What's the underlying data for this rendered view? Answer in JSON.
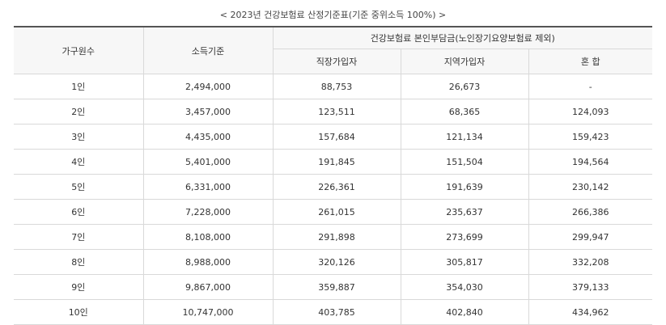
{
  "caption": "< 2023년 건강보험료 산정기준표(기준 중위소득 100%) >",
  "headers": {
    "household": "가구원수",
    "income": "소득기준",
    "premium_group": "건강보험료 본인부담금(노인장기요양보험료 제외)",
    "workplace": "직장가입자",
    "regional": "지역가입자",
    "mixed": "혼 합"
  },
  "rows": [
    {
      "household": "1인",
      "income": "2,494,000",
      "workplace": "88,753",
      "regional": "26,673",
      "mixed": "-"
    },
    {
      "household": "2인",
      "income": "3,457,000",
      "workplace": "123,511",
      "regional": "68,365",
      "mixed": "124,093"
    },
    {
      "household": "3인",
      "income": "4,435,000",
      "workplace": "157,684",
      "regional": "121,134",
      "mixed": "159,423"
    },
    {
      "household": "4인",
      "income": "5,401,000",
      "workplace": "191,845",
      "regional": "151,504",
      "mixed": "194,564"
    },
    {
      "household": "5인",
      "income": "6,331,000",
      "workplace": "226,361",
      "regional": "191,639",
      "mixed": "230,142"
    },
    {
      "household": "6인",
      "income": "7,228,000",
      "workplace": "261,015",
      "regional": "235,637",
      "mixed": "266,386"
    },
    {
      "household": "7인",
      "income": "8,108,000",
      "workplace": "291,898",
      "regional": "273,699",
      "mixed": "299,947"
    },
    {
      "household": "8인",
      "income": "8,988,000",
      "workplace": "320,126",
      "regional": "305,817",
      "mixed": "332,208"
    },
    {
      "household": "9인",
      "income": "9,867,000",
      "workplace": "359,887",
      "regional": "354,030",
      "mixed": "379,133"
    },
    {
      "household": "10인",
      "income": "10,747,000",
      "workplace": "403,785",
      "regional": "402,840",
      "mixed": "434,962"
    }
  ]
}
